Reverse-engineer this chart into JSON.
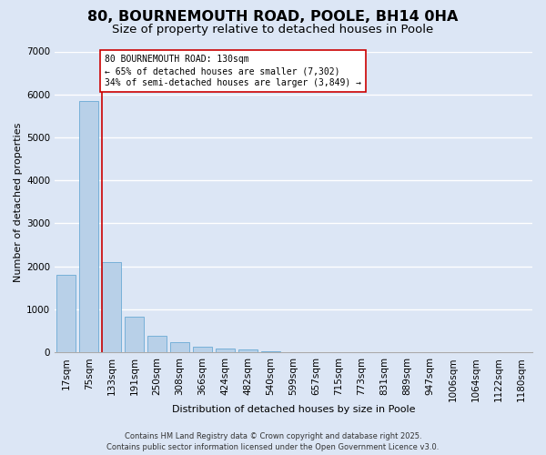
{
  "title": "80, BOURNEMOUTH ROAD, POOLE, BH14 0HA",
  "subtitle": "Size of property relative to detached houses in Poole",
  "xlabel": "Distribution of detached houses by size in Poole",
  "ylabel": "Number of detached properties",
  "categories": [
    "17sqm",
    "75sqm",
    "133sqm",
    "191sqm",
    "250sqm",
    "308sqm",
    "366sqm",
    "424sqm",
    "482sqm",
    "540sqm",
    "599sqm",
    "657sqm",
    "715sqm",
    "773sqm",
    "831sqm",
    "889sqm",
    "947sqm",
    "1006sqm",
    "1064sqm",
    "1122sqm",
    "1180sqm"
  ],
  "values": [
    1800,
    5850,
    2100,
    840,
    380,
    240,
    140,
    80,
    75,
    35,
    10,
    0,
    0,
    0,
    0,
    0,
    0,
    0,
    0,
    0,
    0
  ],
  "bar_color": "#b8d0e8",
  "bar_edge_color": "#6aaad4",
  "plot_bg_color": "#dce6f5",
  "fig_bg_color": "#dce6f5",
  "grid_color": "#ffffff",
  "vline_color": "#cc0000",
  "vline_x": 1.58,
  "annotation_text": "80 BOURNEMOUTH ROAD: 130sqm\n← 65% of detached houses are smaller (7,302)\n34% of semi-detached houses are larger (3,849) →",
  "annotation_box_edgecolor": "#cc0000",
  "annotation_box_facecolor": "#ffffff",
  "ylim": [
    0,
    7000
  ],
  "yticks": [
    0,
    1000,
    2000,
    3000,
    4000,
    5000,
    6000,
    7000
  ],
  "footer_text": "Contains HM Land Registry data © Crown copyright and database right 2025.\nContains public sector information licensed under the Open Government Licence v3.0.",
  "title_fontsize": 11.5,
  "subtitle_fontsize": 9.5,
  "label_fontsize": 8,
  "tick_fontsize": 7.5,
  "annot_fontsize": 7,
  "footer_fontsize": 6
}
